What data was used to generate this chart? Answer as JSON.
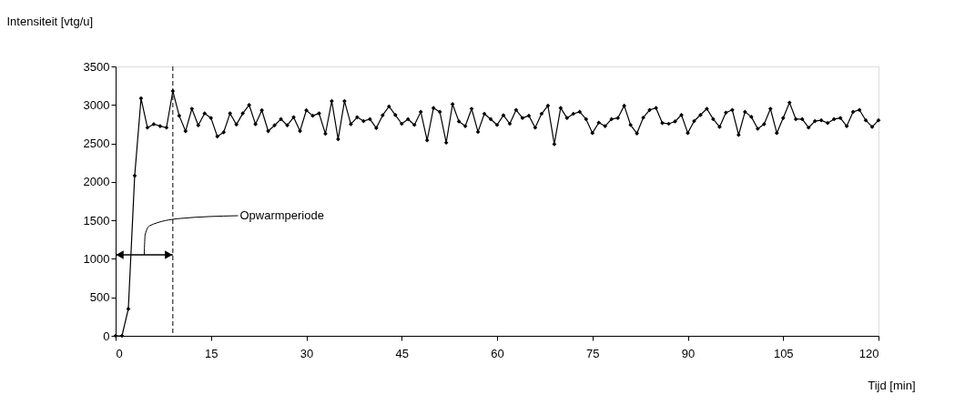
{
  "chart_data": {
    "type": "line",
    "xlabel": "Tijd [min]",
    "ylabel": "Intensiteit [vtg/u]",
    "x": [
      0,
      1,
      2,
      3,
      4,
      5,
      6,
      7,
      8,
      9,
      10,
      11,
      12,
      13,
      14,
      15,
      16,
      17,
      18,
      19,
      20,
      21,
      22,
      23,
      24,
      25,
      26,
      27,
      28,
      29,
      30,
      31,
      32,
      33,
      34,
      35,
      36,
      37,
      38,
      39,
      40,
      41,
      42,
      43,
      44,
      45,
      46,
      47,
      48,
      49,
      50,
      51,
      52,
      53,
      54,
      55,
      56,
      57,
      58,
      59,
      60,
      61,
      62,
      63,
      64,
      65,
      66,
      67,
      68,
      69,
      70,
      71,
      72,
      73,
      74,
      75,
      76,
      77,
      78,
      79,
      80,
      81,
      82,
      83,
      84,
      85,
      86,
      87,
      88,
      89,
      90,
      91,
      92,
      93,
      94,
      95,
      96,
      97,
      98,
      99,
      100,
      101,
      102,
      103,
      104,
      105,
      106,
      107,
      108,
      109,
      110,
      111,
      112,
      113,
      114,
      115,
      116,
      117,
      118,
      119,
      120
    ],
    "series": [
      {
        "color": "#000000",
        "values": [
          0,
          0,
          350,
          2080,
          3085,
          2705,
          2750,
          2725,
          2705,
          3180,
          2860,
          2660,
          2950,
          2735,
          2890,
          2830,
          2590,
          2645,
          2890,
          2745,
          2890,
          3000,
          2750,
          2930,
          2660,
          2735,
          2815,
          2735,
          2840,
          2660,
          2930,
          2860,
          2890,
          2625,
          3050,
          2555,
          3050,
          2750,
          2840,
          2790,
          2815,
          2700,
          2865,
          2980,
          2870,
          2755,
          2815,
          2740,
          2910,
          2540,
          2960,
          2910,
          2510,
          3010,
          2785,
          2725,
          2950,
          2650,
          2885,
          2815,
          2740,
          2865,
          2755,
          2935,
          2830,
          2860,
          2705,
          2885,
          2990,
          2490,
          2960,
          2830,
          2885,
          2910,
          2815,
          2635,
          2770,
          2725,
          2815,
          2830,
          2990,
          2740,
          2630,
          2835,
          2935,
          2960,
          2765,
          2755,
          2785,
          2870,
          2635,
          2790,
          2870,
          2950,
          2815,
          2715,
          2900,
          2935,
          2610,
          2910,
          2845,
          2690,
          2750,
          2950,
          2635,
          2830,
          3030,
          2815,
          2815,
          2705,
          2790,
          2800,
          2765,
          2815,
          2830,
          2725,
          2910,
          2935,
          2800,
          2715,
          2800
        ]
      }
    ],
    "xlim": [
      0,
      120
    ],
    "xticks": [
      0,
      15,
      30,
      45,
      60,
      75,
      90,
      105,
      120
    ],
    "ylim": [
      0,
      3500
    ],
    "yticks": [
      0,
      500,
      {
        "value": 1000,
        "label": "1000"
      },
      {
        "value": 1500,
        "label": "1500"
      },
      {
        "value": 2000,
        "label": "2000"
      },
      {
        "value": 2500,
        "label": "2500"
      },
      {
        "value": 3000,
        "label": "3000"
      },
      {
        "value": 3500,
        "label": "3500"
      }
    ],
    "marker": "diamond",
    "line_style": "solid",
    "grid": false,
    "ref_lines": [
      {
        "axis": "x",
        "value": 9,
        "line_style": "dashed",
        "color": "#000000"
      }
    ],
    "annotations": [
      "Opwarmperiode"
    ]
  }
}
